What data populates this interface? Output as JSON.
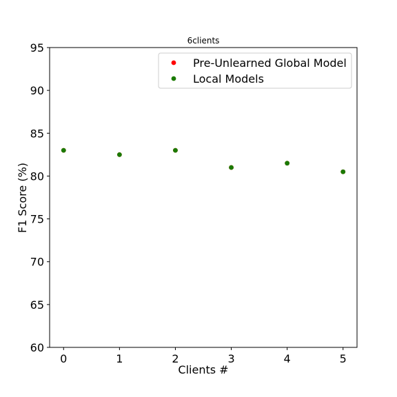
{
  "chart_data": {
    "type": "scatter",
    "title": "6clients",
    "xlabel": "Clients #",
    "ylabel": "F1 Score (%)",
    "x_ticks": [
      0,
      1,
      2,
      3,
      4,
      5
    ],
    "y_ticks": [
      60,
      65,
      70,
      75,
      80,
      85,
      90,
      95
    ],
    "xlim": [
      -0.25,
      5.25
    ],
    "ylim": [
      60,
      95
    ],
    "grid": false,
    "legend_position": "top-right",
    "series": [
      {
        "name": "Pre-Unlearned Global Model",
        "color": "#ff0000",
        "x": [
          0,
          1,
          2,
          3,
          4,
          5
        ],
        "y": [
          83.0,
          82.5,
          83.0,
          81.0,
          81.5,
          80.5
        ]
      },
      {
        "name": "Local Models",
        "color": "#1a7a00",
        "x": [
          0,
          1,
          2,
          3,
          4,
          5
        ],
        "y": [
          83.0,
          82.5,
          83.0,
          81.0,
          81.5,
          80.5
        ]
      }
    ]
  }
}
